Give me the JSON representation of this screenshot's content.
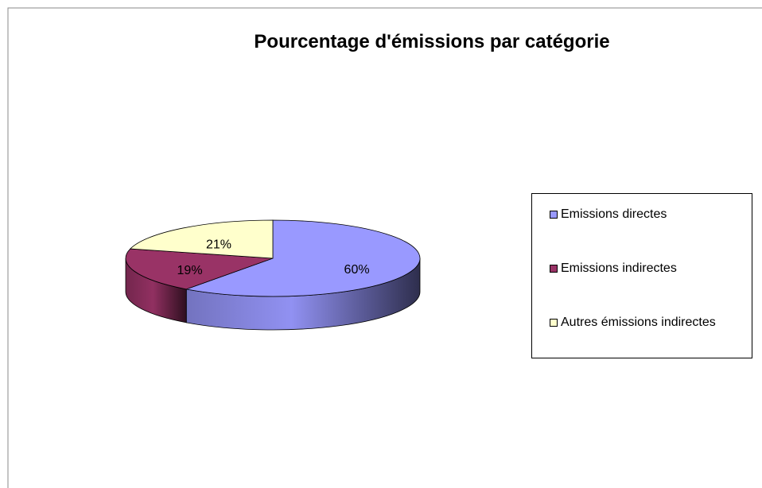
{
  "chart_data": {
    "type": "pie",
    "title": "Pourcentage d'émissions par catégorie",
    "categories": [
      "Emissions directes",
      "Emissions indirectes",
      "Autres émissions indirectes"
    ],
    "values": [
      60,
      19,
      21
    ],
    "value_labels": [
      "60%",
      "19%",
      "21%"
    ],
    "colors": [
      "#9999ff",
      "#993366",
      "#ffffcc"
    ],
    "legend": "right"
  }
}
